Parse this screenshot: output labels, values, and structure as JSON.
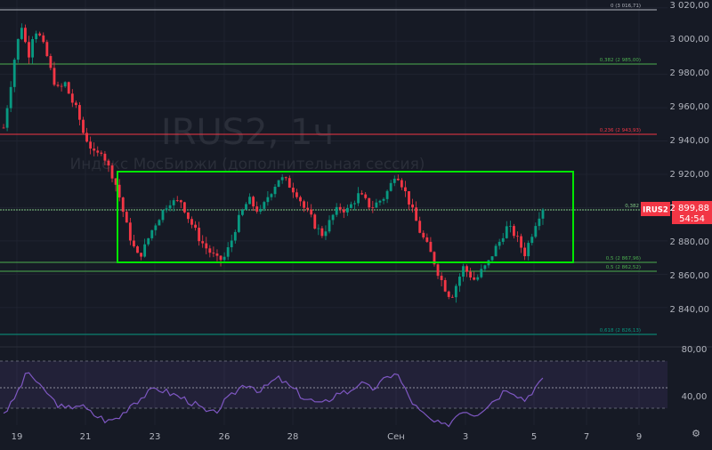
{
  "watermark": {
    "title": "IRUS2, 1ч",
    "subtitle": "Индекс МосБиржи (дополнительная сессия)"
  },
  "price_axis": {
    "ticks": [
      "3 020,00",
      "3 000,00",
      "2 980,00",
      "2 960,00",
      "2 940,00",
      "2 920,00",
      "2 880,00",
      "2 860,00",
      "2 840,00"
    ],
    "current_symbol": "IRUS2",
    "current_price": "2 899,88",
    "countdown": "54:54",
    "current_color": "#f23645"
  },
  "fib_levels": [
    {
      "label": "0 (3 016,71)",
      "color": "#b2b5be"
    },
    {
      "label": "0,382 (2 985,00)",
      "color": "#4caf50"
    },
    {
      "label": "0,236 (2 943,93)",
      "color": "#f23645"
    },
    {
      "label": "0,382",
      "color": "#81c784"
    },
    {
      "label": "0,5 (2 867,96)",
      "color": "#4caf50"
    },
    {
      "label": "0,5 (2 862,52)",
      "color": "#4caf50"
    },
    {
      "label": "0,618 (2 826,13)",
      "color": "#089981"
    }
  ],
  "rsi_axis": {
    "ticks": [
      "80,00",
      "40,00"
    ],
    "line_color": "#7e57c2"
  },
  "time_axis": {
    "ticks": [
      "19",
      "21",
      "23",
      "26",
      "28",
      "Сен",
      "3",
      "5",
      "7",
      "9"
    ]
  },
  "range_box": {
    "color": "#00e600"
  },
  "chart_data": {
    "type": "candlestick",
    "title": "IRUS2, 1ч",
    "subtitle": "Индекс МосБиржи (дополнительная сессия)",
    "ylim": [
      2826,
      3022
    ],
    "y_ticks": [
      3020,
      3000,
      2980,
      2960,
      2940,
      2920,
      2880,
      2860,
      2840
    ],
    "x_ticks": [
      "19",
      "21",
      "23",
      "26",
      "28",
      "Сен",
      "3",
      "5",
      "7",
      "9"
    ],
    "fib_levels": [
      3016.71,
      2985.0,
      2943.93,
      2899.88,
      2867.96,
      2862.52,
      2826.13
    ],
    "range_box": {
      "from": "21",
      "to": "6",
      "high": 2921,
      "low": 2867
    },
    "price_path": [
      [
        0,
        2948
      ],
      [
        1,
        2970
      ],
      [
        2,
        2995
      ],
      [
        3,
        3010
      ],
      [
        4,
        2990
      ],
      [
        5,
        3008
      ],
      [
        6,
        3002
      ],
      [
        7,
        2992
      ],
      [
        8,
        2978
      ],
      [
        9,
        2970
      ],
      [
        10,
        2975
      ],
      [
        11,
        2965
      ],
      [
        12,
        2958
      ],
      [
        13,
        2945
      ],
      [
        14,
        2938
      ],
      [
        15,
        2930
      ],
      [
        16,
        2935
      ],
      [
        17,
        2925
      ],
      [
        18,
        2918
      ],
      [
        19,
        2905
      ],
      [
        20,
        2890
      ],
      [
        21,
        2878
      ],
      [
        22,
        2870
      ],
      [
        23,
        2876
      ],
      [
        24,
        2885
      ],
      [
        25,
        2892
      ],
      [
        26,
        2898
      ],
      [
        27,
        2904
      ],
      [
        28,
        2903
      ],
      [
        29,
        2904
      ],
      [
        30,
        2895
      ],
      [
        31,
        2888
      ],
      [
        32,
        2881
      ],
      [
        33,
        2876
      ],
      [
        34,
        2872
      ],
      [
        35,
        2868
      ],
      [
        36,
        2870
      ],
      [
        37,
        2878
      ],
      [
        38,
        2890
      ],
      [
        39,
        2898
      ],
      [
        40,
        2905
      ],
      [
        41,
        2900
      ],
      [
        42,
        2897
      ],
      [
        43,
        2906
      ],
      [
        44,
        2912
      ],
      [
        45,
        2918
      ],
      [
        46,
        2916
      ],
      [
        47,
        2912
      ],
      [
        48,
        2908
      ],
      [
        49,
        2900
      ],
      [
        50,
        2895
      ],
      [
        51,
        2888
      ],
      [
        52,
        2884
      ],
      [
        53,
        2890
      ],
      [
        54,
        2897
      ],
      [
        55,
        2900
      ],
      [
        56,
        2898
      ],
      [
        57,
        2903
      ],
      [
        58,
        2908
      ],
      [
        59,
        2904
      ],
      [
        60,
        2900
      ],
      [
        61,
        2903
      ],
      [
        62,
        2906
      ],
      [
        63,
        2912
      ],
      [
        64,
        2922
      ],
      [
        65,
        2914
      ],
      [
        66,
        2905
      ],
      [
        67,
        2895
      ],
      [
        68,
        2885
      ],
      [
        69,
        2878
      ],
      [
        70,
        2870
      ],
      [
        71,
        2860
      ],
      [
        72,
        2852
      ],
      [
        73,
        2846
      ],
      [
        74,
        2855
      ],
      [
        75,
        2864
      ],
      [
        76,
        2860
      ],
      [
        77,
        2856
      ],
      [
        78,
        2862
      ],
      [
        79,
        2866
      ],
      [
        80,
        2874
      ],
      [
        81,
        2880
      ],
      [
        82,
        2888
      ],
      [
        83,
        2886
      ],
      [
        84,
        2880
      ],
      [
        85,
        2872
      ],
      [
        86,
        2882
      ],
      [
        87,
        2893
      ],
      [
        88,
        2900
      ]
    ],
    "rsi": {
      "ylim": [
        30,
        85
      ],
      "y_ticks": [
        80,
        40
      ],
      "levels": [
        70,
        50,
        30
      ],
      "values": [
        38,
        42,
        52,
        62,
        72,
        66,
        58,
        55,
        48,
        44,
        40,
        42,
        45,
        42,
        38,
        35,
        33,
        30,
        32,
        34,
        40,
        46,
        48,
        52,
        55,
        58,
        56,
        54,
        52,
        50,
        48,
        45,
        42,
        38,
        36,
        40,
        46,
        50,
        56,
        60,
        62,
        58,
        55,
        60,
        64,
        66,
        62,
        58,
        54,
        50,
        48,
        46,
        44,
        48,
        52,
        55,
        54,
        58,
        62,
        60,
        57,
        60,
        64,
        68,
        72,
        62,
        52,
        44,
        38,
        34,
        30,
        28,
        26,
        30,
        36,
        40,
        38,
        36,
        40,
        44,
        48,
        52,
        58,
        56,
        52,
        48,
        54,
        60,
        64
      ]
    }
  }
}
